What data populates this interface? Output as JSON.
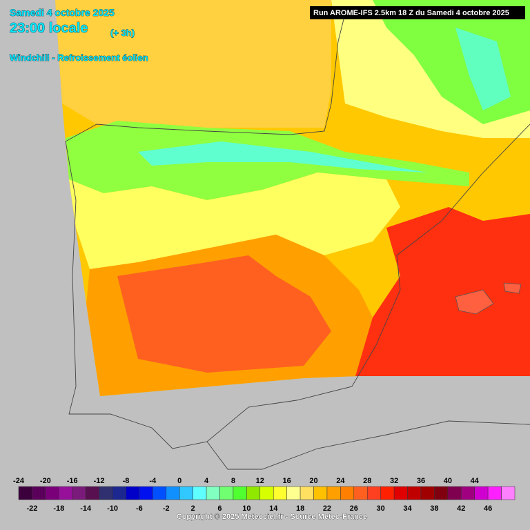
{
  "header": {
    "date": "Samedi 4 octobre 2025",
    "time": "23:00 locale",
    "offset": "(+ 3h)",
    "parameter": "Windchill - Refroissement éolien",
    "run": "Run AROME-IFS 2.5km 18 Z du Samedi 4 octobre 2025"
  },
  "colorbar": {
    "ticks": [
      -24,
      -22,
      -20,
      -18,
      -16,
      -14,
      -12,
      -10,
      -8,
      -6,
      -4,
      -2,
      0,
      2,
      4,
      6,
      8,
      10,
      12,
      14,
      16,
      18,
      20,
      22,
      24,
      26,
      28,
      30,
      32,
      34,
      36,
      38,
      40,
      42,
      44,
      46
    ],
    "colors": [
      "#3c003c",
      "#5a005a",
      "#7a007a",
      "#96109a",
      "#7a1a7a",
      "#581050",
      "#303070",
      "#1c2890",
      "#0000c8",
      "#0010ee",
      "#0050ff",
      "#1090ff",
      "#30c8ff",
      "#60ffff",
      "#80ffc0",
      "#70ff70",
      "#50ff30",
      "#90e800",
      "#d8ff00",
      "#ffff30",
      "#ffff90",
      "#ffe060",
      "#ffc000",
      "#ffa000",
      "#ff8000",
      "#ff6020",
      "#ff4020",
      "#ff2000",
      "#e00000",
      "#c00000",
      "#a00000",
      "#800010",
      "#800050",
      "#a00080",
      "#d000d0",
      "#ff20ff",
      "#ff80ff"
    ]
  },
  "footer": {
    "copyright": "Copyright © 2025 Meteociel.fr - Source Meteo-France"
  }
}
